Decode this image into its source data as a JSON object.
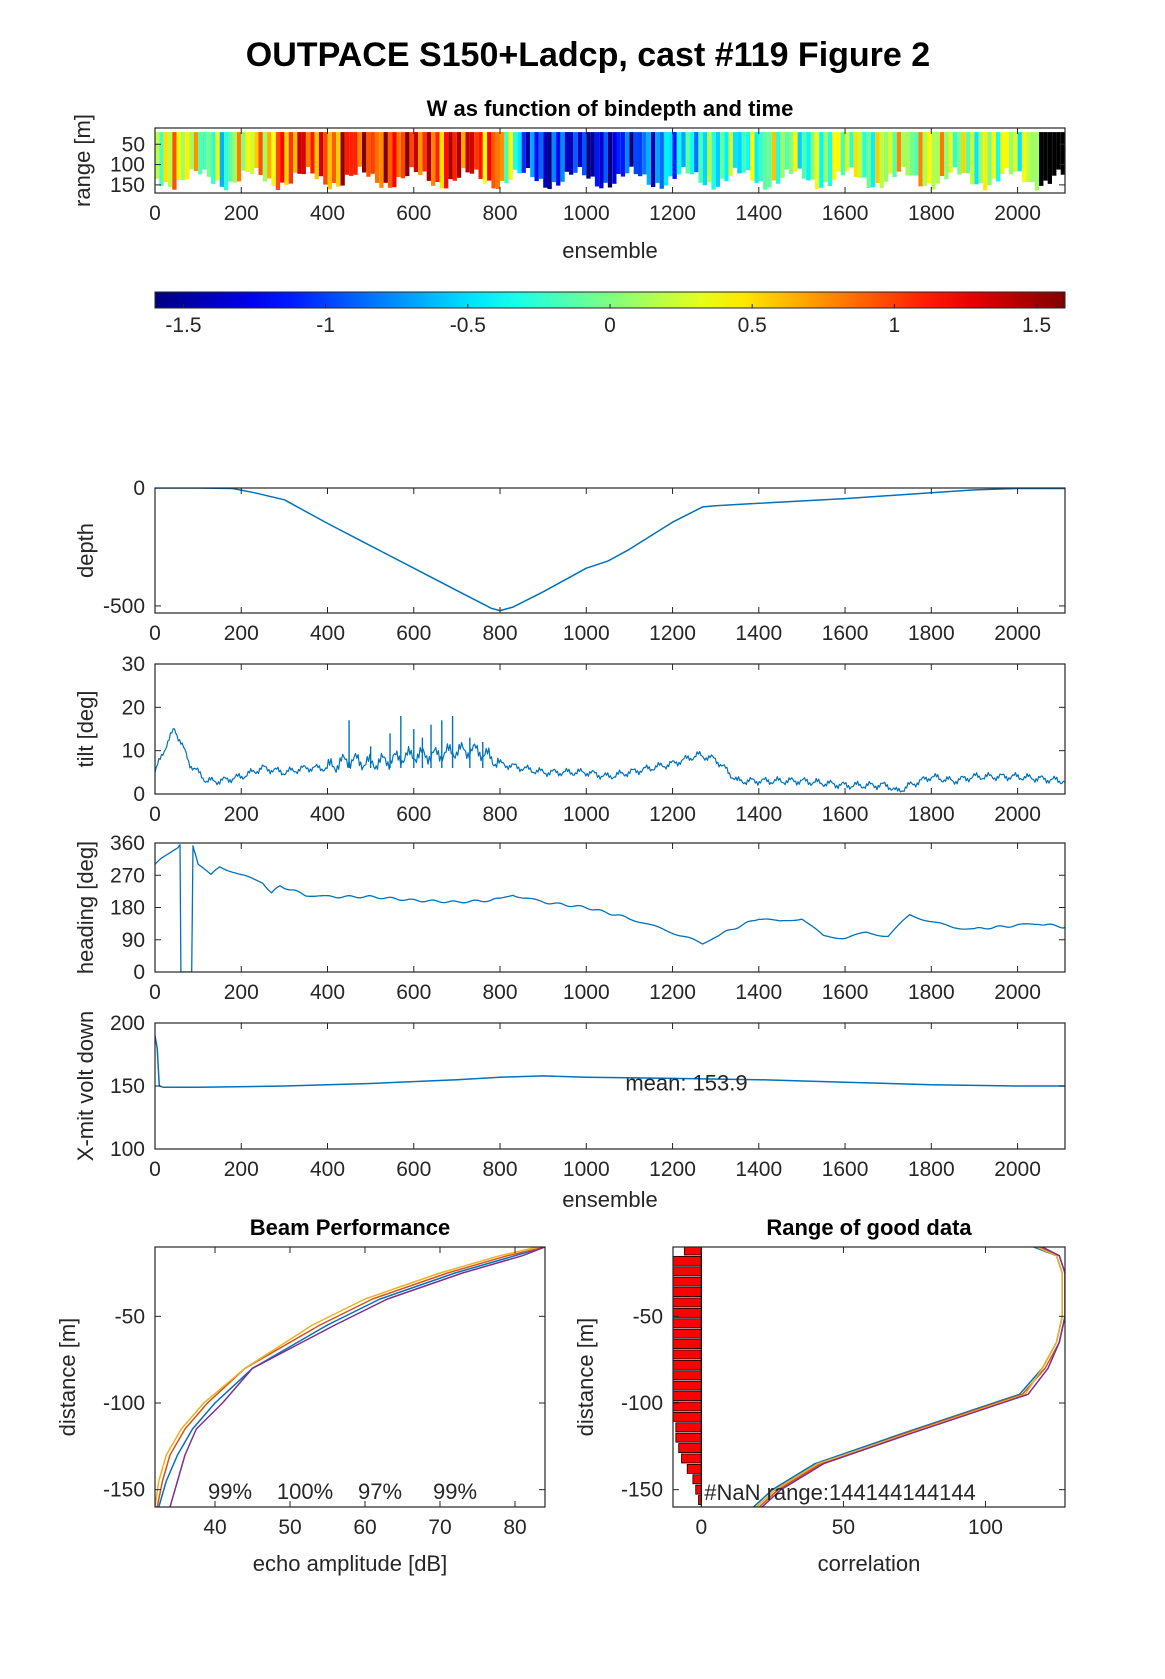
{
  "figure_title": "OUTPACE S150+Ladcp, cast #119 Figure 2",
  "colors": {
    "line": "#0072BD",
    "beam1": "#0072BD",
    "beam2": "#D95319",
    "beam3": "#EDB120",
    "beam4": "#7E2F8E",
    "bar": "#FF0000"
  },
  "chart_data": [
    {
      "id": "w_section",
      "type": "heatmap",
      "title": "W as function of bindepth and time",
      "xlabel": "ensemble",
      "ylabel": "range [m]",
      "xlim": [
        0,
        2110
      ],
      "ylim": [
        170,
        10
      ],
      "xticks": [
        0,
        200,
        400,
        600,
        800,
        1000,
        1200,
        1400,
        1600,
        1800,
        2000
      ],
      "yticks": [
        50,
        100,
        150
      ],
      "segments_x": [
        0,
        50,
        100,
        150,
        200,
        250,
        300,
        350,
        400,
        450,
        500,
        550,
        600,
        650,
        700,
        750,
        800,
        850,
        900,
        950,
        1000,
        1050,
        1100,
        1150,
        1200,
        1250,
        1300,
        1350,
        1400,
        1450,
        1500,
        1550,
        1600,
        1650,
        1700,
        1750,
        1800,
        1850,
        1900,
        1950,
        2000,
        2050,
        2110
      ],
      "segments_w": [
        0.2,
        0.5,
        0.1,
        -0.3,
        0.4,
        0.5,
        0.9,
        1.1,
        0.8,
        1.2,
        1.0,
        1.1,
        1.2,
        0.9,
        1.3,
        1.0,
        0.7,
        -1.0,
        -1.2,
        -1.1,
        -1.4,
        -1.3,
        -1.1,
        -0.9,
        -0.6,
        -0.4,
        -0.2,
        -0.3,
        -0.1,
        0.1,
        -0.2,
        0.0,
        0.2,
        -0.1,
        0.3,
        0.1,
        0.4,
        0.1,
        0.0,
        0.2,
        0.1,
        0.0
      ],
      "colorbar": {
        "clim": [
          -1.6,
          1.6
        ],
        "ticks": [
          -1.5,
          -1,
          -0.5,
          0,
          0.5,
          1,
          1.5
        ],
        "tick_labels": [
          "-1.5",
          "-1",
          "-0.5",
          "0",
          "0.5",
          "1",
          "1.5"
        ]
      }
    },
    {
      "id": "depth",
      "type": "line",
      "xlabel": "",
      "ylabel": "depth",
      "xlim": [
        0,
        2110
      ],
      "ylim": [
        -530,
        0
      ],
      "xticks": [
        0,
        200,
        400,
        600,
        800,
        1000,
        1200,
        1400,
        1600,
        1800,
        2000
      ],
      "yticks": [
        0,
        -500
      ],
      "x": [
        0,
        100,
        180,
        230,
        300,
        400,
        500,
        600,
        700,
        780,
        800,
        830,
        900,
        1000,
        1050,
        1100,
        1200,
        1270,
        1300,
        1400,
        1600,
        1800,
        1900,
        2000,
        2110
      ],
      "y": [
        0,
        0,
        -2,
        -20,
        -50,
        -150,
        -245,
        -340,
        -435,
        -510,
        -520,
        -505,
        -440,
        -340,
        -310,
        -260,
        -145,
        -80,
        -75,
        -65,
        -45,
        -20,
        -8,
        -2,
        -2
      ]
    },
    {
      "id": "tilt",
      "type": "line",
      "xlabel": "",
      "ylabel": "tilt [deg]",
      "xlim": [
        0,
        2110
      ],
      "ylim": [
        0,
        30
      ],
      "xticks": [
        0,
        200,
        400,
        600,
        800,
        1000,
        1200,
        1400,
        1600,
        1800,
        2000
      ],
      "yticks": [
        0,
        10,
        20,
        30
      ],
      "x": [
        0,
        20,
        45,
        60,
        80,
        100,
        120,
        150,
        200,
        250,
        300,
        350,
        400,
        450,
        500,
        550,
        600,
        650,
        700,
        750,
        800,
        850,
        900,
        1000,
        1050,
        1100,
        1200,
        1260,
        1300,
        1350,
        1400,
        1500,
        1600,
        1700,
        1720,
        1750,
        1800,
        1850,
        1900,
        2000,
        2110
      ],
      "y": [
        5,
        10,
        15,
        12,
        7,
        5,
        3,
        3,
        4,
        6,
        5,
        6,
        6,
        8,
        7,
        8,
        9,
        9,
        10,
        10,
        7,
        6,
        5,
        5,
        4,
        5,
        7,
        9,
        8,
        3,
        3,
        3,
        2,
        2,
        0.5,
        2,
        4,
        3,
        4,
        4,
        3
      ],
      "spikes": [
        [
          450,
          17
        ],
        [
          500,
          11
        ],
        [
          545,
          14
        ],
        [
          570,
          18
        ],
        [
          600,
          15
        ],
        [
          620,
          13
        ],
        [
          640,
          16
        ],
        [
          665,
          17
        ],
        [
          690,
          18
        ],
        [
          730,
          13
        ],
        [
          760,
          12
        ]
      ]
    },
    {
      "id": "heading",
      "type": "line",
      "xlabel": "",
      "ylabel": "heading [deg]",
      "xlim": [
        0,
        2110
      ],
      "ylim": [
        0,
        360
      ],
      "xticks": [
        0,
        200,
        400,
        600,
        800,
        1000,
        1200,
        1400,
        1600,
        1800,
        2000
      ],
      "yticks": [
        0,
        90,
        180,
        270,
        360
      ],
      "x": [
        0,
        20,
        50,
        58,
        60,
        62,
        85,
        88,
        90,
        100,
        130,
        150,
        200,
        250,
        270,
        290,
        350,
        400,
        500,
        600,
        700,
        780,
        800,
        830,
        900,
        1000,
        1100,
        1150,
        1200,
        1270,
        1300,
        1400,
        1420,
        1450,
        1500,
        1550,
        1600,
        1650,
        1700,
        1750,
        1800,
        1850,
        1900,
        2000,
        2050,
        2110
      ],
      "y": [
        300,
        320,
        345,
        355,
        0,
        0,
        0,
        355,
        340,
        300,
        270,
        295,
        270,
        250,
        220,
        240,
        215,
        210,
        210,
        200,
        195,
        200,
        205,
        215,
        195,
        180,
        150,
        130,
        110,
        80,
        100,
        150,
        145,
        140,
        150,
        100,
        95,
        110,
        100,
        160,
        140,
        125,
        120,
        130,
        135,
        125
      ]
    },
    {
      "id": "xmit_volt",
      "type": "line",
      "xlabel": "ensemble",
      "ylabel": "X-mit volt down",
      "xlim": [
        0,
        2110
      ],
      "ylim": [
        100,
        200
      ],
      "xticks": [
        0,
        200,
        400,
        600,
        800,
        1000,
        1200,
        1400,
        1600,
        1800,
        2000
      ],
      "yticks": [
        100,
        150,
        200
      ],
      "x": [
        0,
        5,
        10,
        20,
        100,
        300,
        500,
        700,
        800,
        900,
        1000,
        1200,
        1400,
        1600,
        1800,
        2000,
        2110
      ],
      "y": [
        190,
        180,
        150,
        149,
        149,
        150,
        152,
        155,
        157,
        158,
        157,
        156,
        155,
        153,
        151,
        150,
        150
      ],
      "annotation": "mean: 153.9",
      "annotation_at": [
        1070,
        152
      ]
    },
    {
      "id": "beam_performance",
      "type": "line",
      "title": "Beam Performance",
      "xlabel": "echo amplitude [dB]",
      "ylabel": "distance [m]",
      "xlim": [
        32,
        84
      ],
      "ylim": [
        -160,
        -10
      ],
      "xticks": [
        40,
        50,
        60,
        70,
        80
      ],
      "yticks": [
        -50,
        -100,
        -150
      ],
      "beam_percent_labels": [
        "99%",
        "100%",
        "97%",
        "99%"
      ],
      "beam_percent_x": [
        40,
        50,
        60,
        70
      ],
      "series": [
        {
          "x": [
            84,
            80,
            72,
            62,
            55,
            45,
            40,
            37,
            35,
            33.5,
            32.5
          ],
          "y": [
            -10,
            -15,
            -25,
            -40,
            -55,
            -80,
            -100,
            -115,
            -130,
            -145,
            -160
          ]
        },
        {
          "x": [
            84,
            79,
            71,
            61,
            54,
            44,
            39,
            36,
            34,
            33,
            32.3
          ],
          "y": [
            -10,
            -15,
            -25,
            -40,
            -55,
            -80,
            -100,
            -115,
            -130,
            -145,
            -160
          ]
        },
        {
          "x": [
            83,
            78,
            70,
            60,
            53,
            44,
            38.5,
            35.5,
            33.5,
            32.5,
            32
          ],
          "y": [
            -10,
            -15,
            -25,
            -40,
            -55,
            -80,
            -100,
            -115,
            -130,
            -145,
            -160
          ]
        },
        {
          "x": [
            84,
            81,
            73,
            63,
            56,
            45,
            41,
            37.5,
            36,
            35,
            34
          ],
          "y": [
            -10,
            -15,
            -25,
            -40,
            -55,
            -80,
            -100,
            -115,
            -130,
            -145,
            -160
          ]
        }
      ]
    },
    {
      "id": "range_good_data",
      "type": "line",
      "title": "Range of good data",
      "xlabel": "correlation",
      "ylabel": "distance [m]",
      "xlim": [
        -10,
        128
      ],
      "ylim": [
        -160,
        -10
      ],
      "xticks": [
        0,
        50,
        100
      ],
      "yticks": [
        -50,
        -100,
        -150
      ],
      "annotation": "#NaN range:144144144144",
      "annotation_at": [
        1,
        -152
      ],
      "bars_y": [
        -12,
        -18,
        -24,
        -30,
        -36,
        -42,
        -48,
        -54,
        -60,
        -66,
        -72,
        -78,
        -84,
        -90,
        -96,
        -102,
        -108,
        -114,
        -120,
        -126,
        -132,
        -138,
        -144,
        -150,
        -156
      ],
      "bars_len": [
        6,
        10,
        10,
        10,
        10,
        10,
        10,
        10,
        10,
        10,
        10,
        10,
        10,
        10,
        10,
        10,
        10,
        9,
        9,
        8,
        7,
        5,
        3,
        2,
        1
      ],
      "series": [
        {
          "x": [
            117,
            125,
            127,
            127,
            125,
            120,
            112,
            70,
            40,
            25,
            17
          ],
          "y": [
            -10,
            -15,
            -25,
            -50,
            -65,
            -80,
            -95,
            -118,
            -135,
            -150,
            -162
          ]
        },
        {
          "x": [
            119,
            126,
            128,
            128,
            126,
            121,
            113,
            71,
            42,
            27,
            19
          ],
          "y": [
            -10,
            -15,
            -25,
            -50,
            -65,
            -80,
            -95,
            -118,
            -135,
            -150,
            -162
          ]
        },
        {
          "x": [
            118,
            125,
            127,
            127,
            125,
            120,
            114,
            72,
            41,
            26,
            18
          ],
          "y": [
            -10,
            -15,
            -25,
            -50,
            -65,
            -80,
            -95,
            -118,
            -135,
            -150,
            -162
          ]
        },
        {
          "x": [
            120,
            126,
            128,
            128,
            126,
            122,
            115,
            73,
            43,
            28,
            20
          ],
          "y": [
            -10,
            -15,
            -25,
            -50,
            -65,
            -80,
            -95,
            -118,
            -135,
            -150,
            -162
          ]
        }
      ]
    }
  ]
}
